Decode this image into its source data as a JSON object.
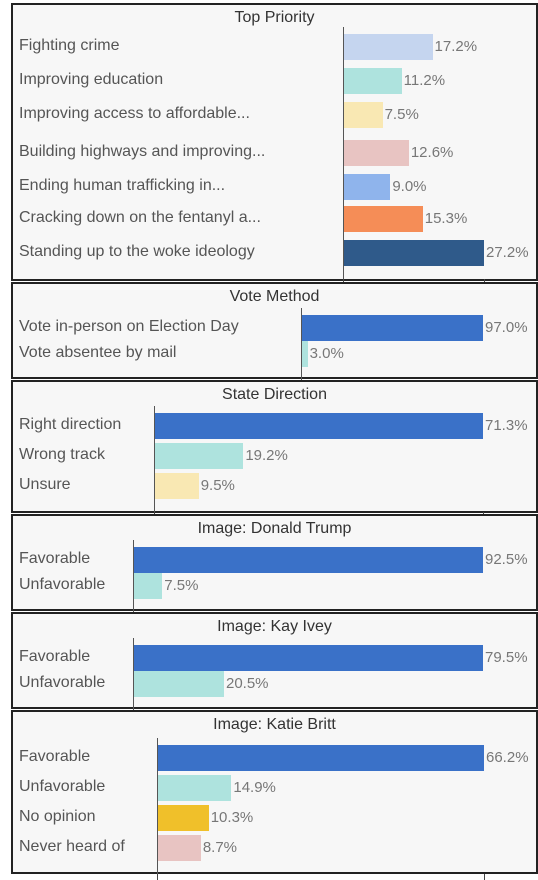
{
  "chart_data": [
    {
      "type": "bar",
      "title": "Top Priority",
      "categories": [
        "Fighting crime",
        "Improving education",
        "Improving access to affordable...",
        "Building highways and improving...",
        "Ending human trafficking in...",
        "Cracking down on the fentanyl a...",
        "Standing up to the woke ideology"
      ],
      "values": [
        17.2,
        11.2,
        7.5,
        12.6,
        9.0,
        15.3,
        27.2
      ],
      "value_labels": [
        "17.2%",
        "11.2%",
        "7.5%",
        "12.6%",
        "9.0%",
        "15.3%",
        "27.2%"
      ],
      "colors": [
        "#c5d5ef",
        "#aee3de",
        "#f9e8b3",
        "#e8c4c2",
        "#8fb4ec",
        "#f58d57",
        "#2f5a8a"
      ],
      "xlim": [
        0,
        27.2
      ],
      "grid": false
    },
    {
      "type": "bar",
      "title": "Vote Method",
      "categories": [
        "Vote in-person on Election Day",
        "Vote absentee by mail"
      ],
      "values": [
        97.0,
        3.0
      ],
      "value_labels": [
        "97.0%",
        "3.0%"
      ],
      "colors": [
        "#3a71c8",
        "#aee3de"
      ],
      "xlim": [
        0,
        97.0
      ],
      "grid": false
    },
    {
      "type": "bar",
      "title": "State Direction",
      "categories": [
        "Right direction",
        "Wrong track",
        "Unsure"
      ],
      "values": [
        71.3,
        19.2,
        9.5
      ],
      "value_labels": [
        "71.3%",
        "19.2%",
        "9.5%"
      ],
      "colors": [
        "#3a71c8",
        "#aee3de",
        "#f9e8b3"
      ],
      "xlim": [
        0,
        71.3
      ],
      "grid": false
    },
    {
      "type": "bar",
      "title": "Image: Donald Trump",
      "categories": [
        "Favorable",
        "Unfavorable"
      ],
      "values": [
        92.5,
        7.5
      ],
      "value_labels": [
        "92.5%",
        "7.5%"
      ],
      "colors": [
        "#3a71c8",
        "#aee3de"
      ],
      "xlim": [
        0,
        92.5
      ],
      "grid": false
    },
    {
      "type": "bar",
      "title": "Image: Kay Ivey",
      "categories": [
        "Favorable",
        "Unfavorable"
      ],
      "values": [
        79.5,
        20.5
      ],
      "value_labels": [
        "79.5%",
        "20.5%"
      ],
      "colors": [
        "#3a71c8",
        "#aee3de"
      ],
      "xlim": [
        0,
        79.5
      ],
      "grid": false
    },
    {
      "type": "bar",
      "title": "Image: Katie Britt",
      "categories": [
        "Favorable",
        "Unfavorable",
        "No opinion",
        "Never heard of"
      ],
      "values": [
        66.2,
        14.9,
        10.3,
        8.7
      ],
      "value_labels": [
        "66.2%",
        "14.9%",
        "10.3%",
        "8.7%"
      ],
      "colors": [
        "#3a71c8",
        "#aee3de",
        "#f0c02a",
        "#e8c4c2"
      ],
      "xlim": [
        0,
        66.2
      ],
      "grid": false
    }
  ]
}
